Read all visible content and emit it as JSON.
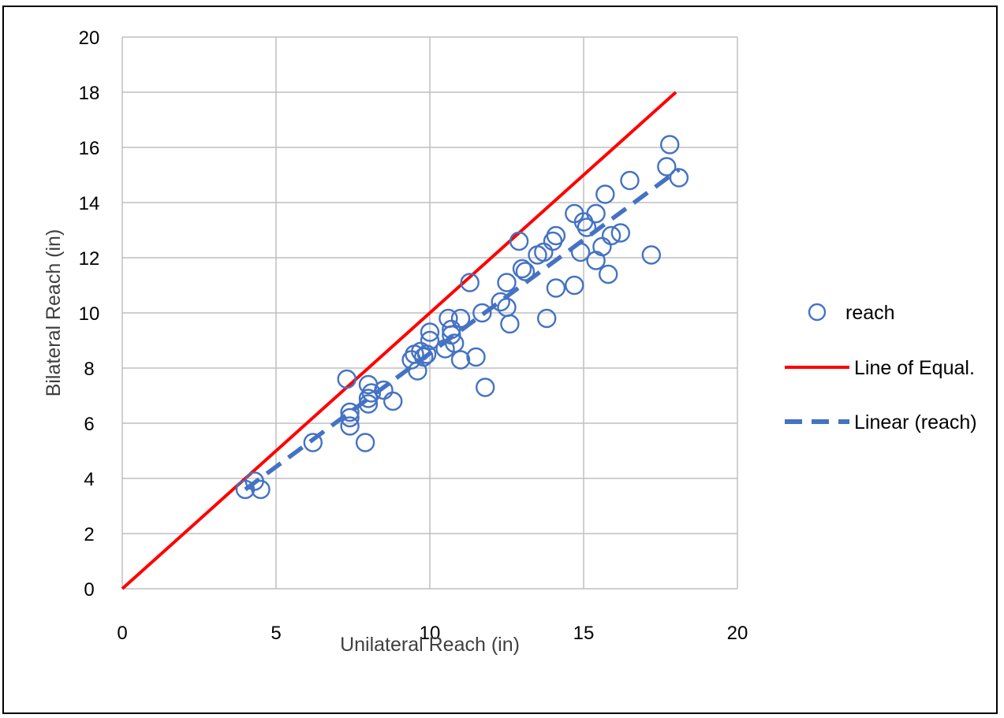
{
  "chart_data": {
    "type": "scatter",
    "xlabel": "Unilateral Reach (in)",
    "ylabel": "Bilateral Reach (in)",
    "xlim": [
      0,
      20
    ],
    "ylim": [
      0,
      20
    ],
    "x_ticks": [
      "0",
      "5",
      "10",
      "15",
      "20"
    ],
    "y_ticks": [
      "0",
      "2",
      "4",
      "6",
      "8",
      "10",
      "12",
      "14",
      "16",
      "18",
      "20"
    ],
    "grid": true,
    "legend": {
      "position": "right",
      "entries": [
        "reach",
        "Line of Equal.",
        "Linear (reach)"
      ]
    },
    "colors": {
      "points": "#4472C4",
      "equality": "#FF0000",
      "trend": "#4472C4"
    },
    "series": [
      {
        "name": "reach",
        "kind": "scatter",
        "points": [
          [
            4.0,
            3.6
          ],
          [
            4.3,
            3.9
          ],
          [
            4.5,
            3.6
          ],
          [
            6.2,
            5.3
          ],
          [
            7.3,
            7.6
          ],
          [
            7.4,
            6.4
          ],
          [
            7.4,
            6.2
          ],
          [
            7.4,
            5.9
          ],
          [
            7.9,
            5.3
          ],
          [
            8.0,
            7.4
          ],
          [
            8.0,
            6.9
          ],
          [
            8.0,
            6.7
          ],
          [
            8.1,
            7.1
          ],
          [
            8.5,
            7.2
          ],
          [
            8.8,
            6.8
          ],
          [
            9.4,
            8.3
          ],
          [
            9.5,
            8.5
          ],
          [
            9.6,
            7.9
          ],
          [
            9.7,
            8.6
          ],
          [
            9.8,
            8.4
          ],
          [
            9.9,
            8.5
          ],
          [
            10.0,
            9.3
          ],
          [
            10.0,
            9.0
          ],
          [
            10.5,
            8.7
          ],
          [
            10.6,
            9.8
          ],
          [
            10.7,
            9.4
          ],
          [
            10.7,
            9.2
          ],
          [
            10.8,
            8.9
          ],
          [
            11.0,
            9.8
          ],
          [
            11.0,
            8.3
          ],
          [
            11.3,
            11.1
          ],
          [
            11.5,
            8.4
          ],
          [
            11.7,
            10.0
          ],
          [
            11.8,
            7.3
          ],
          [
            12.3,
            10.4
          ],
          [
            12.5,
            11.1
          ],
          [
            12.5,
            10.2
          ],
          [
            12.6,
            9.6
          ],
          [
            12.9,
            12.6
          ],
          [
            13.0,
            11.6
          ],
          [
            13.1,
            11.5
          ],
          [
            13.5,
            12.1
          ],
          [
            13.7,
            12.2
          ],
          [
            13.8,
            9.8
          ],
          [
            14.0,
            12.6
          ],
          [
            14.1,
            12.8
          ],
          [
            14.1,
            10.9
          ],
          [
            14.7,
            13.6
          ],
          [
            14.7,
            11.0
          ],
          [
            14.9,
            12.2
          ],
          [
            15.0,
            13.3
          ],
          [
            15.1,
            13.1
          ],
          [
            15.4,
            13.6
          ],
          [
            15.4,
            11.9
          ],
          [
            15.6,
            12.4
          ],
          [
            15.7,
            14.3
          ],
          [
            15.8,
            11.4
          ],
          [
            15.9,
            12.8
          ],
          [
            16.2,
            12.9
          ],
          [
            16.5,
            14.8
          ],
          [
            17.2,
            12.1
          ],
          [
            17.7,
            15.3
          ],
          [
            17.8,
            16.1
          ],
          [
            18.1,
            14.9
          ]
        ]
      },
      {
        "name": "Line of Equal.",
        "kind": "line",
        "points": [
          [
            0,
            0
          ],
          [
            18,
            18
          ]
        ]
      },
      {
        "name": "Linear (reach)",
        "kind": "line",
        "dashed": true,
        "points": [
          [
            4.0,
            3.6
          ],
          [
            18.1,
            15.2
          ]
        ]
      }
    ]
  }
}
